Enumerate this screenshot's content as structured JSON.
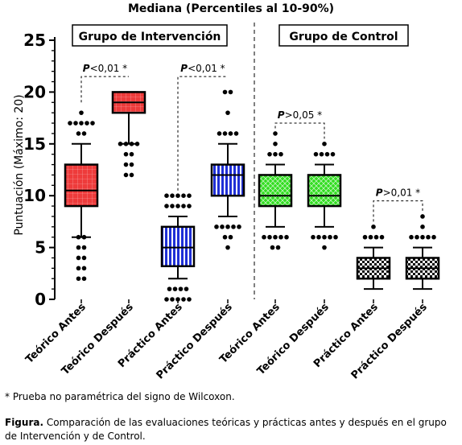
{
  "chart_data": {
    "type": "box",
    "title": "Mediana (Percentiles al 10-90%)",
    "ylabel": "Puntuación (Máximo: 20)",
    "ylim": [
      0,
      25
    ],
    "yticks": [
      0,
      5,
      10,
      15,
      20,
      25
    ],
    "groups": [
      {
        "name": "Grupo de Intervención",
        "categories": [
          0,
          1,
          2,
          3
        ]
      },
      {
        "name": "Grupo de Control",
        "categories": [
          4,
          5,
          6,
          7
        ]
      }
    ],
    "categories": [
      "Teórico Antes",
      "Teórico Después",
      "Práctico Antes",
      "Práctico Después",
      "Teórico Antes",
      "Teórico Después",
      "Práctico Antes",
      "Práctico Después"
    ],
    "boxes": [
      {
        "p10": 6,
        "q1": 9,
        "median": 10.5,
        "q3": 13,
        "p90": 15,
        "color": "#ee3b3b",
        "pattern": "grid-red",
        "outliers": [
          17,
          17,
          17,
          17,
          18,
          17,
          16,
          16,
          2,
          2,
          3,
          3,
          4,
          4,
          5,
          5,
          6,
          6
        ]
      },
      {
        "p10": 15,
        "q1": 18,
        "median": 19,
        "q3": 20,
        "p90": 20,
        "color": "#ee3b3b",
        "pattern": "grid-red",
        "outliers": [
          15,
          15,
          15,
          15,
          14,
          14,
          13,
          13,
          12,
          12
        ]
      },
      {
        "p10": 2,
        "q1": 3.2,
        "median": 5,
        "q3": 7,
        "p90": 8,
        "color": "#1f2fd6",
        "pattern": "stripes-blue",
        "outliers": [
          10,
          10,
          10,
          10,
          10,
          9,
          9,
          9,
          9,
          9,
          1,
          1,
          1,
          1,
          0,
          0,
          0,
          0,
          0
        ]
      },
      {
        "p10": 8,
        "q1": 10,
        "median": 12,
        "q3": 13,
        "p90": 15,
        "color": "#1f2fd6",
        "pattern": "stripes-blue",
        "outliers": [
          20,
          20,
          18,
          16,
          16,
          16,
          16,
          7,
          7,
          7,
          7,
          7,
          6,
          6,
          5
        ]
      },
      {
        "p10": 7,
        "q1": 9,
        "median": 10,
        "q3": 12,
        "p90": 13,
        "color": "#33dd22",
        "pattern": "cross-green",
        "outliers": [
          16,
          15,
          14,
          14,
          14,
          6,
          6,
          6,
          6,
          6,
          5,
          5
        ]
      },
      {
        "p10": 7,
        "q1": 9,
        "median": 10,
        "q3": 12,
        "p90": 13,
        "color": "#33dd22",
        "pattern": "cross-green",
        "outliers": [
          15,
          14,
          14,
          14,
          14,
          6,
          6,
          6,
          6,
          6,
          5
        ]
      },
      {
        "p10": 1,
        "q1": 2,
        "median": 3,
        "q3": 4,
        "p90": 5,
        "color": "#222222",
        "pattern": "checker",
        "outliers": [
          7,
          6,
          6,
          6,
          6
        ]
      },
      {
        "p10": 1,
        "q1": 2,
        "median": 3,
        "q3": 4,
        "p90": 5,
        "color": "#222222",
        "pattern": "checker",
        "outliers": [
          8,
          7,
          6,
          6,
          6,
          6,
          6
        ]
      }
    ],
    "annotations": [
      {
        "text": "P<0,01",
        "star": "*",
        "from": 0,
        "to": 1,
        "y": 21.5,
        "y_from": 19.0,
        "y_to": 21.5
      },
      {
        "text": "P<0,01",
        "star": "*",
        "from": 2,
        "to": 3,
        "y": 21.5,
        "y_from": 10.5,
        "y_to": 21.5
      },
      {
        "text": "P>0,05",
        "star": "*",
        "from": 4,
        "to": 5,
        "y": 17.0,
        "y_from": 16.5,
        "y_to": 15.5
      },
      {
        "text": "P>0,01",
        "star": "*",
        "from": 6,
        "to": 7,
        "y": 9.5,
        "y_from": 7.5,
        "y_to": 8.5
      }
    ],
    "grid": false,
    "legend": "none"
  },
  "footnote": "* Prueba no paramétrica del signo de Wilcoxon.",
  "caption": {
    "label": "Figura.",
    "text": " Comparación de las evaluaciones teóricas y prácticas antes y después en el grupo de Intervención y de Control."
  }
}
